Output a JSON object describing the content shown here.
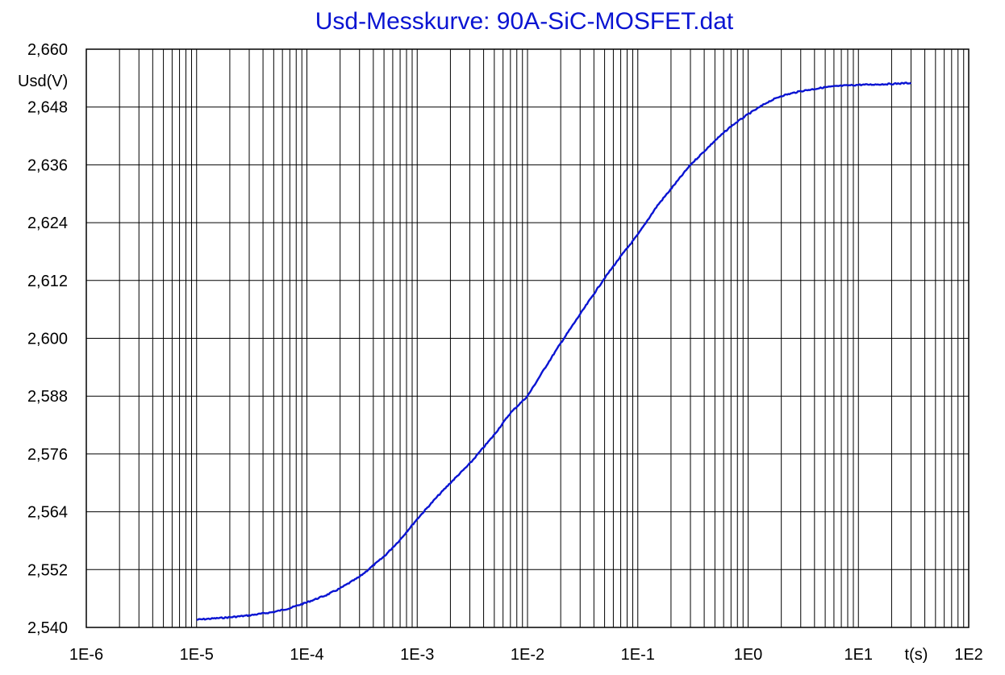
{
  "chart_data": {
    "type": "line",
    "title": "Usd-Messkurve: 90A-SiC-MOSFET.dat",
    "xlabel": "t(s)",
    "ylabel": "Usd(V)",
    "x_scale": "log",
    "xlim": [
      1e-06,
      100
    ],
    "ylim": [
      2.54,
      2.66
    ],
    "grid": true,
    "x_ticks": [
      {
        "value": 1e-06,
        "label": "1E-6"
      },
      {
        "value": 1e-05,
        "label": "1E-5"
      },
      {
        "value": 0.0001,
        "label": "1E-4"
      },
      {
        "value": 0.001,
        "label": "1E-3"
      },
      {
        "value": 0.01,
        "label": "1E-2"
      },
      {
        "value": 0.1,
        "label": "1E-1"
      },
      {
        "value": 1,
        "label": "1E0"
      },
      {
        "value": 10,
        "label": "1E1"
      },
      {
        "value": 100,
        "label": "1E2"
      }
    ],
    "y_ticks": [
      {
        "value": 2.54,
        "label": "2,540"
      },
      {
        "value": 2.552,
        "label": "2,552"
      },
      {
        "value": 2.564,
        "label": "2,564"
      },
      {
        "value": 2.576,
        "label": "2,576"
      },
      {
        "value": 2.588,
        "label": "2,588"
      },
      {
        "value": 2.6,
        "label": "2,600"
      },
      {
        "value": 2.612,
        "label": "2,612"
      },
      {
        "value": 2.624,
        "label": "2,624"
      },
      {
        "value": 2.636,
        "label": "2,636"
      },
      {
        "value": 2.648,
        "label": "2,648"
      },
      {
        "value": 2.66,
        "label": "2,660"
      }
    ],
    "colors": {
      "series": "#0a14d2",
      "title": "#0a14d2",
      "grid": "#000000",
      "text": "#000000"
    },
    "series": [
      {
        "x": [
          1e-05,
          2e-05,
          3e-05,
          5e-05,
          7e-05,
          0.0001,
          0.00015,
          0.0002,
          0.0003,
          0.0005,
          0.0007,
          0.001,
          0.0015,
          0.002,
          0.003,
          0.005,
          0.007,
          0.01,
          0.015,
          0.02,
          0.03,
          0.05,
          0.07,
          0.1,
          0.15,
          0.2,
          0.3,
          0.5,
          0.7,
          1,
          1.5,
          2,
          3,
          5,
          7,
          10,
          15,
          20,
          30
        ],
        "y": [
          2.5416,
          2.5421,
          2.5425,
          2.5432,
          2.544,
          2.5452,
          2.5467,
          2.5481,
          2.5505,
          2.5547,
          2.5582,
          2.5625,
          2.567,
          2.57,
          2.574,
          2.58,
          2.5845,
          2.588,
          2.5945,
          2.599,
          2.605,
          2.6125,
          2.617,
          2.6215,
          2.6275,
          2.631,
          2.636,
          2.641,
          2.644,
          2.6465,
          2.649,
          2.6503,
          2.6513,
          2.6521,
          2.6524,
          2.6526,
          2.6527,
          2.6528,
          2.653
        ]
      }
    ]
  }
}
